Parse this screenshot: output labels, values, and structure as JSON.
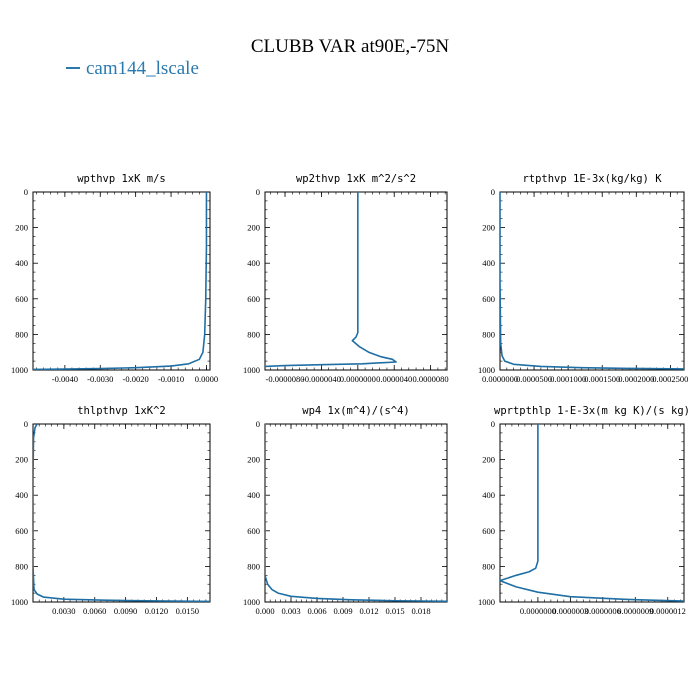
{
  "title": "CLUBB VAR at90E,-75N",
  "legend": {
    "label": "cam144_lscale",
    "color": "#2a7ab0"
  },
  "line_color": "#1f6fa5",
  "chart_data": [
    {
      "type": "line",
      "title": "wpthvp   1xK m/s",
      "xlim": [
        -0.0049,
        0.0001
      ],
      "ylim": [
        1000,
        0
      ],
      "xticks": [
        -0.004,
        -0.003,
        -0.002,
        -0.001,
        0.0
      ],
      "xtick_labels": [
        "-0.0040",
        "-0.0030",
        "-0.0020",
        "-0.0010",
        "0.0000"
      ],
      "yticks": [
        0,
        200,
        400,
        600,
        800,
        1000
      ],
      "ytick_labels": [
        "0",
        "200",
        "400",
        "600",
        "800",
        "1000"
      ],
      "series": [
        {
          "x": [
            0.0,
            0.0,
            -2e-05,
            -5e-05,
            -0.0001,
            -0.0002,
            -0.0005,
            -0.001,
            -0.002,
            -0.003,
            -0.004,
            -0.0049
          ],
          "y": [
            0,
            300,
            600,
            800,
            900,
            940,
            965,
            978,
            987,
            992,
            995,
            997
          ]
        }
      ]
    },
    {
      "type": "line",
      "title": "wp2thvp   1xK m^2/s^2",
      "xlim": [
        -1.02e-05,
        9.8e-06
      ],
      "ylim": [
        1000,
        0
      ],
      "xticks": [
        -8e-06,
        -4e-06,
        0.0,
        4e-06,
        8e-06
      ],
      "xtick_labels": [
        "-0.0000080",
        "-0.0000040",
        "0.0000000",
        "0.0000040",
        "0.0000080"
      ],
      "yticks": [
        0,
        200,
        400,
        600,
        800,
        1000
      ],
      "ytick_labels": [
        "0",
        "200",
        "400",
        "600",
        "800",
        "1000"
      ],
      "series": [
        {
          "x": [
            0.0,
            0.0,
            -2e-07,
            -6e-07,
            2e-07,
            1.2e-06,
            2.5e-06,
            3.8e-06,
            4.2e-06,
            5e-07,
            -4e-06,
            -8e-06,
            -1.02e-05
          ],
          "y": [
            0,
            790,
            815,
            835,
            870,
            900,
            925,
            940,
            955,
            965,
            970,
            975,
            980
          ]
        }
      ]
    },
    {
      "type": "line",
      "title": "rtpthvp   1E-3x(kg/kg) K",
      "xlim": [
        0.0,
        0.00027
      ],
      "ylim": [
        1000,
        0
      ],
      "xticks": [
        0.0,
        5e-05,
        0.0001,
        0.00015,
        0.0002,
        0.00025
      ],
      "xtick_labels": [
        "0.0000000",
        "0.0000500",
        "0.0001000",
        "0.0001500",
        "0.0002000",
        "0.0002500"
      ],
      "yticks": [
        0,
        200,
        400,
        600,
        800,
        1000
      ],
      "ytick_labels": [
        "0",
        "200",
        "400",
        "600",
        "800",
        "1000"
      ],
      "series": [
        {
          "x": [
            0.0,
            0.0,
            1e-06,
            3e-06,
            7e-06,
            2e-05,
            6e-05,
            0.00012,
            0.00019,
            0.00027
          ],
          "y": [
            0,
            500,
            850,
            920,
            950,
            968,
            980,
            987,
            991,
            994
          ]
        }
      ]
    },
    {
      "type": "line",
      "title": "thlpthvp   1xK^2",
      "xlim": [
        0.0,
        0.0172
      ],
      "ylim": [
        1000,
        0
      ],
      "xticks": [
        0.003,
        0.006,
        0.009,
        0.012,
        0.015
      ],
      "xtick_labels": [
        "0.0030",
        "0.0060",
        "0.0090",
        "0.0120",
        "0.0150"
      ],
      "yticks": [
        0,
        200,
        400,
        600,
        800,
        1000
      ],
      "ytick_labels": [
        "0",
        "200",
        "400",
        "600",
        "800",
        "1000"
      ],
      "series": [
        {
          "x": [
            0.0004,
            0.0002,
            5e-05,
            0.0,
            0.0,
            0.0001,
            0.0004,
            0.001,
            0.003,
            0.007,
            0.012,
            0.0172
          ],
          "y": [
            0,
            20,
            80,
            300,
            800,
            930,
            955,
            972,
            984,
            990,
            994,
            997
          ]
        }
      ]
    },
    {
      "type": "line",
      "title": "wp4   1x(m^4)/(s^4)",
      "xlim": [
        0.0,
        0.021
      ],
      "ylim": [
        1000,
        0
      ],
      "xticks": [
        0.0,
        0.003,
        0.006,
        0.009,
        0.012,
        0.015,
        0.018
      ],
      "xtick_labels": [
        "0.000",
        "0.003",
        "0.006",
        "0.009",
        "0.012",
        "0.015",
        "0.018"
      ],
      "yticks": [
        0,
        200,
        400,
        600,
        800,
        1000
      ],
      "ytick_labels": [
        "0",
        "200",
        "400",
        "600",
        "800",
        "1000"
      ],
      "series": [
        {
          "x": [
            0.0,
            0.0,
            0.0003,
            0.0008,
            0.0015,
            0.003,
            0.006,
            0.01,
            0.015,
            0.021
          ],
          "y": [
            0,
            850,
            900,
            930,
            950,
            968,
            980,
            988,
            993,
            996
          ]
        }
      ]
    },
    {
      "type": "line",
      "title": "wprtpthlp   1-E-3x(m kg K)/(s kg)",
      "xlim": [
        -3.5e-07,
        1.35e-06
      ],
      "ylim": [
        1000,
        0
      ],
      "xticks": [
        0.0,
        3e-07,
        6e-07,
        9e-07,
        1.2e-06
      ],
      "xtick_labels": [
        "0.0000000",
        "0.0000003",
        "0.0000006",
        "0.0000009",
        "0.0000012"
      ],
      "yticks": [
        0,
        200,
        400,
        600,
        800,
        1000
      ],
      "ytick_labels": [
        "0",
        "200",
        "400",
        "600",
        "800",
        "1000"
      ],
      "series": [
        {
          "x": [
            0.0,
            0.0,
            -2e-08,
            -8e-08,
            -2e-07,
            -3.5e-07,
            -2e-07,
            0.0,
            3e-07,
            8e-07,
            1.35e-06
          ],
          "y": [
            0,
            770,
            810,
            830,
            850,
            880,
            915,
            945,
            970,
            985,
            995
          ]
        }
      ]
    }
  ]
}
